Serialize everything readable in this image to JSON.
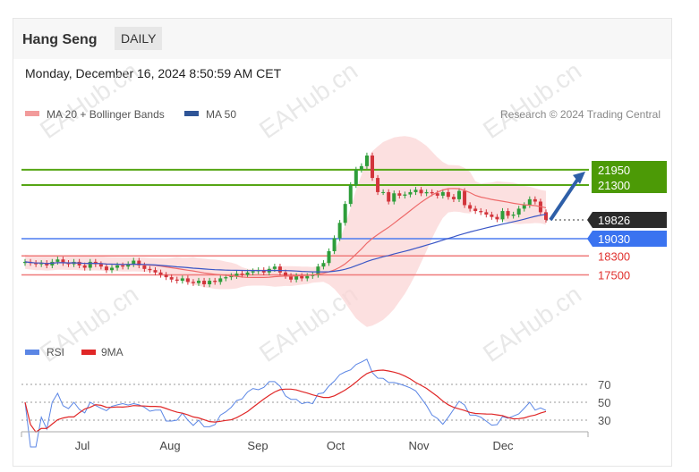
{
  "header": {
    "title": "Hang Seng",
    "timeframe": "DAILY",
    "datetime": "Monday, December 16, 2024 8:50:59 AM CET"
  },
  "legend": {
    "ma20": "MA 20 + Bollinger Bands",
    "ma50": "MA 50",
    "source": "Research © 2024 Trading Central",
    "rsi": "RSI",
    "rsi_ma": "9MA"
  },
  "watermark": "EAHub.cn",
  "colors": {
    "up": "#2e9e3a",
    "down": "#d2343b",
    "ma20": "#ee6a6a",
    "ma50": "#3a56c6",
    "bb_fill": "#fbd6d6",
    "resistance": "#56a615",
    "pivot": "#4c7cf0",
    "support": "#ef7a7a",
    "current": "#222222",
    "rsi": "#5b86e5",
    "rsi_ma": "#e02727"
  },
  "levels": [
    {
      "value": "21950",
      "kind": "resistance"
    },
    {
      "value": "21300",
      "kind": "resistance"
    },
    {
      "value": "19826",
      "kind": "current"
    },
    {
      "value": "19030",
      "kind": "pivot"
    },
    {
      "value": "18300",
      "kind": "support"
    },
    {
      "value": "17500",
      "kind": "support"
    }
  ],
  "rsi_ticks": [
    "70",
    "50",
    "30"
  ],
  "chart_data": {
    "type": "candlestick",
    "x_labels": [
      "Jul",
      "Aug",
      "Sep",
      "Oct",
      "Nov",
      "Dec"
    ],
    "closes": [
      18050,
      18000,
      17950,
      18000,
      17900,
      18050,
      18150,
      18000,
      17950,
      18050,
      17900,
      17800,
      18050,
      17950,
      17850,
      17700,
      17800,
      17900,
      17850,
      17950,
      18100,
      17900,
      17750,
      17700,
      17600,
      17500,
      17400,
      17300,
      17250,
      17350,
      17200,
      17150,
      17250,
      17100,
      17250,
      17200,
      17350,
      17400,
      17450,
      17550,
      17500,
      17600,
      17650,
      17700,
      17600,
      17750,
      17850,
      17600,
      17450,
      17300,
      17450,
      17350,
      17450,
      17500,
      17850,
      18000,
      18500,
      19050,
      19700,
      20500,
      21300,
      21950,
      22100,
      22550,
      21600,
      21000,
      21000,
      20600,
      20950,
      20850,
      20900,
      21000,
      21100,
      20950,
      21000,
      20950,
      20850,
      21000,
      20800,
      20700,
      21050,
      20450,
      20300,
      20200,
      20150,
      20050,
      19950,
      19850,
      20200,
      20000,
      20050,
      20300,
      20450,
      20700,
      20600,
      20150,
      19830
    ],
    "ma20_last": 19900,
    "ma50_last": 20200,
    "rsi_last": 53,
    "rsi_ma_last": 52,
    "projection": {
      "from": 19826,
      "to": 21950
    },
    "levels": [
      21950,
      21300,
      19826,
      19030,
      18300,
      17500
    ],
    "rsi_levels": [
      70,
      50,
      30
    ]
  }
}
